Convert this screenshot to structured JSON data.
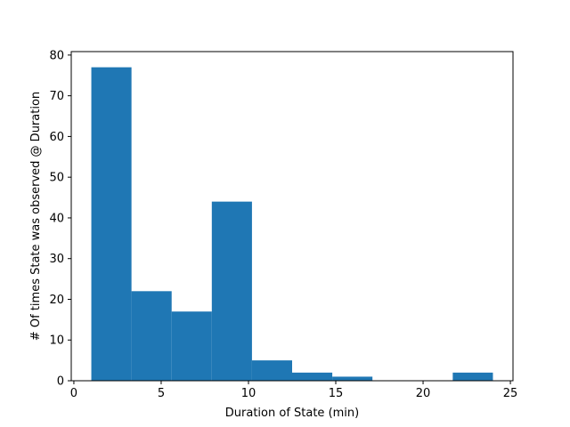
{
  "chart_data": {
    "type": "bar",
    "title": "",
    "xlabel": "Duration of State (min)",
    "ylabel": "# Of times State was observed @ Duration",
    "xlim": [
      -0.15,
      25.15
    ],
    "ylim": [
      0,
      80.85
    ],
    "xticks": [
      0,
      5,
      10,
      15,
      20,
      25
    ],
    "yticks": [
      0,
      10,
      20,
      30,
      40,
      50,
      60,
      70,
      80
    ],
    "bins": [
      {
        "x0": 1.0,
        "x1": 3.3,
        "value": 77
      },
      {
        "x0": 3.3,
        "x1": 5.6,
        "value": 22
      },
      {
        "x0": 5.6,
        "x1": 7.9,
        "value": 17
      },
      {
        "x0": 7.9,
        "x1": 10.2,
        "value": 44
      },
      {
        "x0": 10.2,
        "x1": 12.5,
        "value": 5
      },
      {
        "x0": 12.5,
        "x1": 14.8,
        "value": 2
      },
      {
        "x0": 14.8,
        "x1": 17.1,
        "value": 1
      },
      {
        "x0": 17.1,
        "x1": 19.4,
        "value": 0
      },
      {
        "x0": 19.4,
        "x1": 21.7,
        "value": 0
      },
      {
        "x0": 21.7,
        "x1": 24.0,
        "value": 2
      }
    ],
    "bar_color": "#1f77b4",
    "grid": false,
    "legend": "none"
  }
}
